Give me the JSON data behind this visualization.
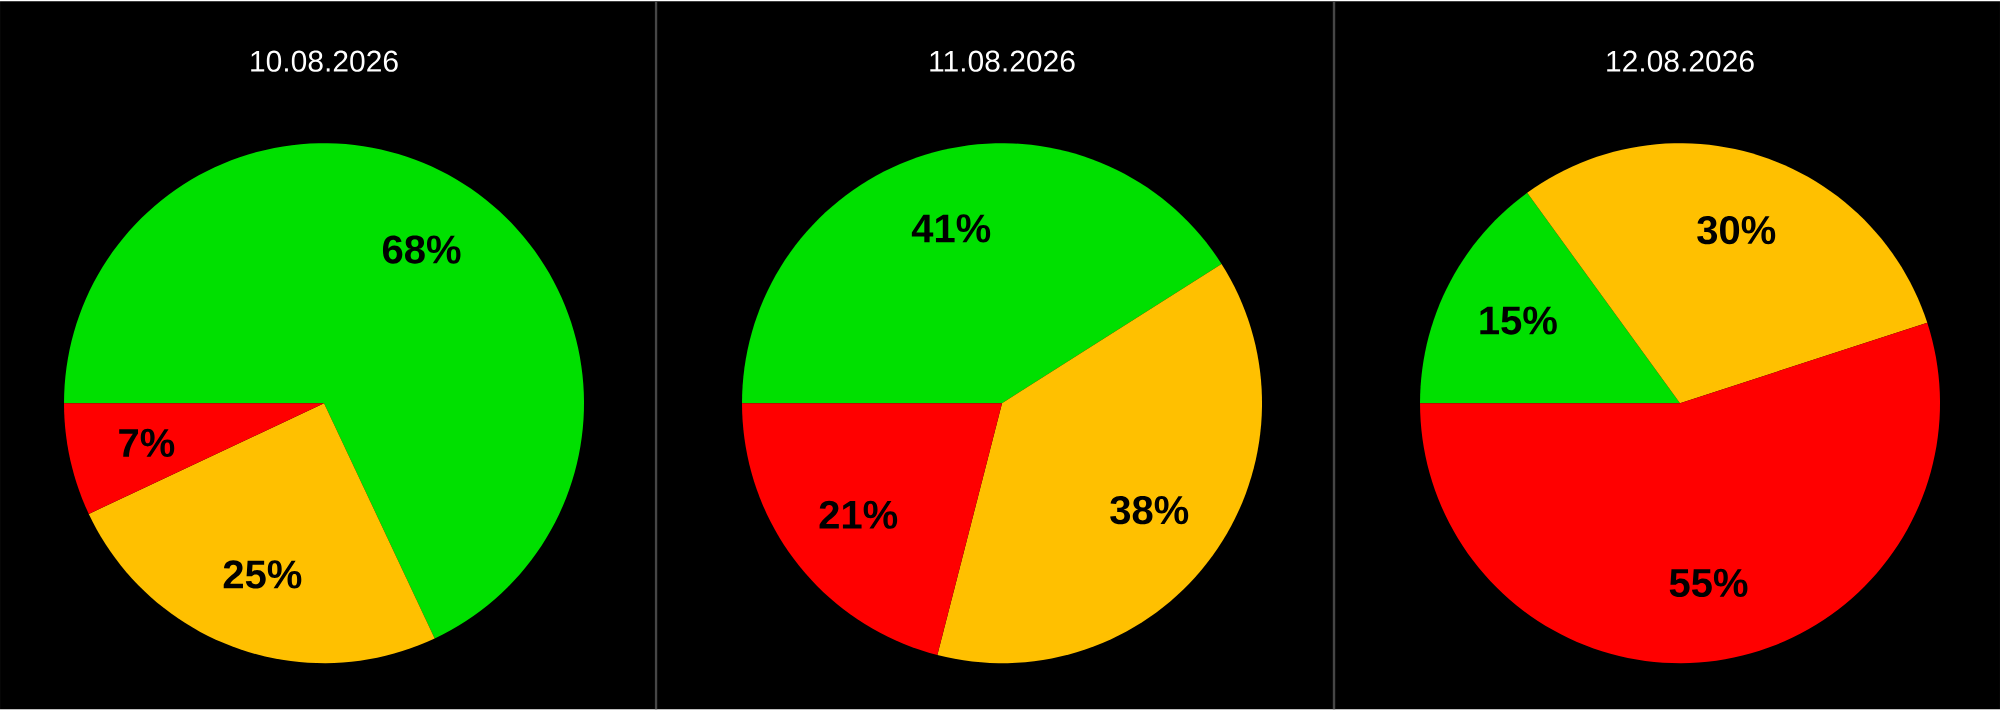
{
  "chart_data": [
    {
      "type": "pie",
      "title": "10.08.2026",
      "categories": [
        null,
        null,
        null
      ],
      "values": [
        68,
        25,
        7
      ],
      "colors": [
        "#00e000",
        "#ffc000",
        "#ff0000"
      ],
      "value_labels": [
        "68%",
        "25%",
        "7%"
      ]
    },
    {
      "type": "pie",
      "title": "11.08.2026",
      "categories": [
        null,
        null,
        null
      ],
      "values": [
        41,
        38,
        21
      ],
      "colors": [
        "#00e000",
        "#ffc000",
        "#ff0000"
      ],
      "value_labels": [
        "41%",
        "38%",
        "21%"
      ]
    },
    {
      "type": "pie",
      "title": "12.08.2026",
      "categories": [
        null,
        null,
        null
      ],
      "values": [
        15,
        30,
        55
      ],
      "colors": [
        "#00e000",
        "#ffc000",
        "#ff0000"
      ],
      "value_labels": [
        "15%",
        "30%",
        "55%"
      ]
    }
  ]
}
